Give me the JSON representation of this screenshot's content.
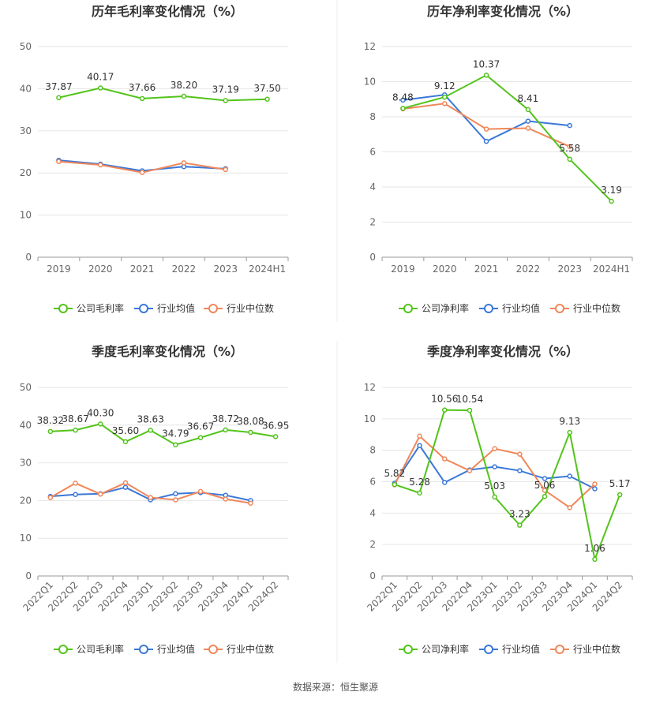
{
  "colors": {
    "company": "#52c41a",
    "industry_avg": "#3a78d8",
    "industry_median": "#f0875a",
    "grid": "#e6e6e6",
    "axis": "#999999",
    "text": "#333333"
  },
  "source_text": "数据来源：恒生聚源",
  "chart_data": [
    {
      "type": "line",
      "title": "历年毛利率变化情况（%）",
      "categories": [
        "2019",
        "2020",
        "2021",
        "2022",
        "2023",
        "2024H1"
      ],
      "ylim": [
        0,
        50
      ],
      "yticks": [
        0,
        10,
        20,
        30,
        40,
        50
      ],
      "rotate_labels": false,
      "series": [
        {
          "name": "公司毛利率",
          "role": "company",
          "values": [
            37.87,
            40.17,
            37.66,
            38.2,
            37.19,
            37.5
          ],
          "labels": [
            "37.87",
            "40.17",
            "37.66",
            "38.20",
            "37.19",
            "37.50"
          ]
        },
        {
          "name": "行业均值",
          "role": "industry_avg",
          "values": [
            23.0,
            22.1,
            20.5,
            21.5,
            21.0,
            null
          ]
        },
        {
          "name": "行业中位数",
          "role": "industry_median",
          "values": [
            22.7,
            21.9,
            20.1,
            22.4,
            20.8,
            null
          ]
        }
      ]
    },
    {
      "type": "line",
      "title": "历年净利率变化情况（%）",
      "categories": [
        "2019",
        "2020",
        "2021",
        "2022",
        "2023",
        "2024H1"
      ],
      "ylim": [
        0,
        12
      ],
      "yticks": [
        0,
        2,
        4,
        6,
        8,
        10,
        12
      ],
      "rotate_labels": false,
      "series": [
        {
          "name": "公司净利率",
          "role": "company",
          "values": [
            8.48,
            9.12,
            10.37,
            8.41,
            5.58,
            3.19
          ],
          "labels": [
            "8.48",
            "9.12",
            "10.37",
            "8.41",
            "5.58",
            "3.19"
          ]
        },
        {
          "name": "行业均值",
          "role": "industry_avg",
          "values": [
            8.95,
            9.25,
            6.6,
            7.75,
            7.5,
            null
          ]
        },
        {
          "name": "行业中位数",
          "role": "industry_median",
          "values": [
            8.45,
            8.75,
            7.3,
            7.35,
            6.3,
            null
          ]
        }
      ]
    },
    {
      "type": "line",
      "title": "季度毛利率变化情况（%）",
      "categories": [
        "2022Q1",
        "2022Q2",
        "2022Q3",
        "2022Q4",
        "2023Q1",
        "2023Q2",
        "2023Q3",
        "2023Q4",
        "2024Q1",
        "2024Q2"
      ],
      "ylim": [
        0,
        50
      ],
      "yticks": [
        0,
        10,
        20,
        30,
        40,
        50
      ],
      "rotate_labels": true,
      "series": [
        {
          "name": "公司毛利率",
          "role": "company",
          "values": [
            38.32,
            38.67,
            40.3,
            35.6,
            38.63,
            34.79,
            36.67,
            38.72,
            38.08,
            36.95
          ],
          "labels": [
            "38.32",
            "38.67",
            "40.30",
            "35.60",
            "38.63",
            "34.79",
            "36.67",
            "38.72",
            "38.08",
            "36.95"
          ]
        },
        {
          "name": "行业均值",
          "role": "industry_avg",
          "values": [
            21.1,
            21.6,
            21.8,
            23.5,
            20.2,
            21.8,
            22.1,
            21.4,
            20.0,
            null
          ]
        },
        {
          "name": "行业中位数",
          "role": "industry_median",
          "values": [
            20.8,
            24.6,
            21.7,
            24.7,
            20.8,
            20.2,
            22.4,
            20.4,
            19.3,
            null
          ]
        }
      ]
    },
    {
      "type": "line",
      "title": "季度净利率变化情况（%）",
      "categories": [
        "2022Q1",
        "2022Q2",
        "2022Q3",
        "2022Q4",
        "2023Q1",
        "2023Q2",
        "2023Q3",
        "2023Q4",
        "2024Q1",
        "2024Q2"
      ],
      "ylim": [
        0,
        12
      ],
      "yticks": [
        0,
        2,
        4,
        6,
        8,
        10,
        12
      ],
      "rotate_labels": true,
      "series": [
        {
          "name": "公司净利率",
          "role": "company",
          "values": [
            5.82,
            5.28,
            10.56,
            10.54,
            5.03,
            3.23,
            5.06,
            9.13,
            1.06,
            5.17
          ],
          "labels": [
            "5.82",
            "5.28",
            "10.56",
            "10.54",
            "5.03",
            "3.23",
            "5.06",
            "9.13",
            "1.06",
            "5.17"
          ]
        },
        {
          "name": "行业均值",
          "role": "industry_avg",
          "values": [
            5.9,
            8.3,
            5.95,
            6.75,
            6.95,
            6.7,
            6.2,
            6.35,
            5.55,
            null
          ]
        },
        {
          "name": "行业中位数",
          "role": "industry_median",
          "values": [
            5.8,
            8.9,
            7.45,
            6.7,
            8.1,
            7.75,
            5.45,
            4.35,
            5.85,
            null
          ]
        }
      ]
    }
  ]
}
